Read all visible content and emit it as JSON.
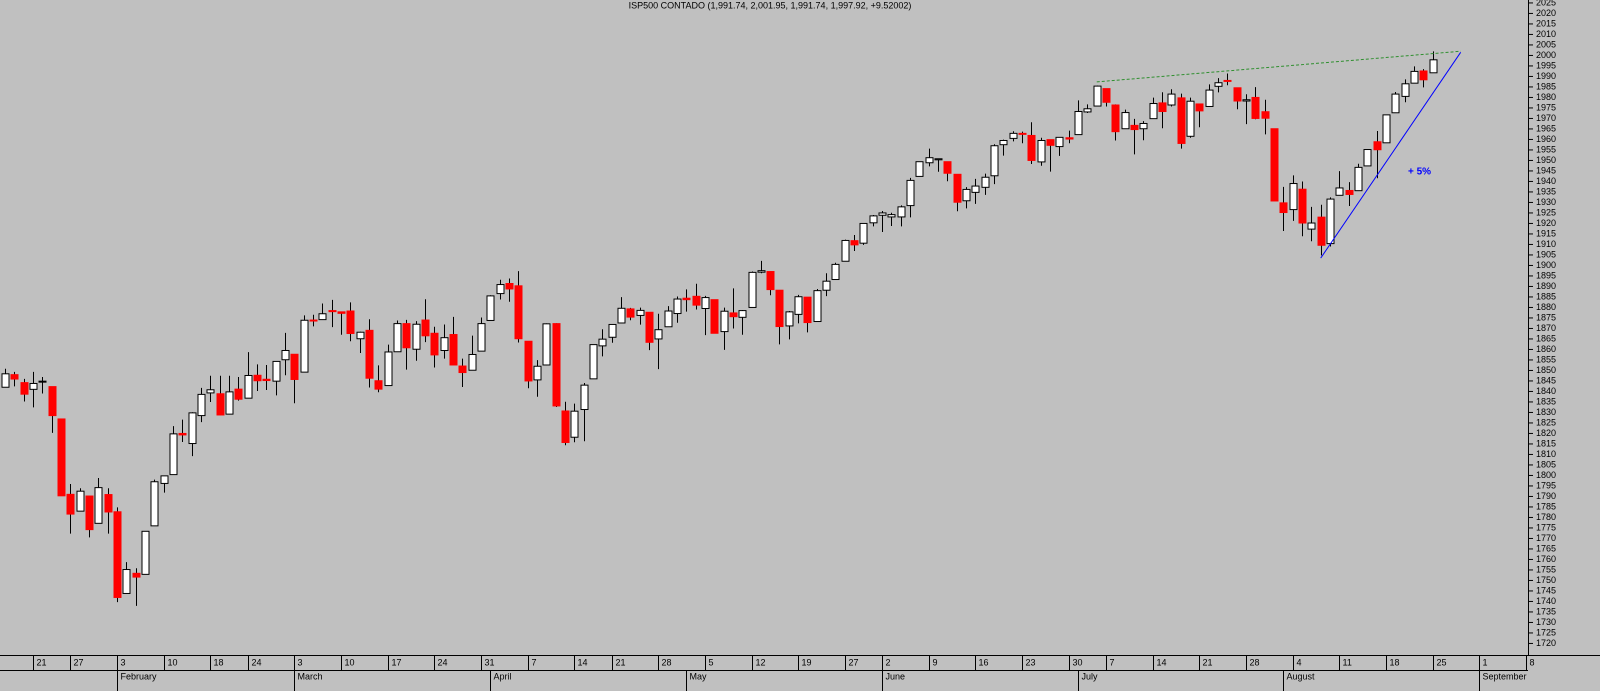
{
  "chart_data": {
    "type": "candlestick",
    "title": "ISP500 CONTADO (1,991.74, 2,001.95, 1,991.74, 1,997.92, +9.52002)",
    "up_color": "#ffffff",
    "down_color": "#ff0000",
    "wick_color": "#000000",
    "ylim": [
      1714.5,
      2026.4
    ],
    "yticks": [
      1720,
      1725,
      1730,
      1735,
      1740,
      1745,
      1750,
      1755,
      1760,
      1765,
      1770,
      1775,
      1780,
      1785,
      1790,
      1795,
      1800,
      1805,
      1810,
      1815,
      1820,
      1825,
      1830,
      1835,
      1840,
      1845,
      1850,
      1855,
      1860,
      1865,
      1870,
      1875,
      1880,
      1885,
      1890,
      1895,
      1900,
      1905,
      1910,
      1915,
      1920,
      1925,
      1930,
      1935,
      1940,
      1945,
      1950,
      1955,
      1960,
      1965,
      1970,
      1975,
      1980,
      1985,
      1990,
      1995,
      2000,
      2005,
      2010,
      2015,
      2020,
      2025
    ],
    "categories": [
      null,
      null,
      null,
      "21",
      null,
      null,
      null,
      "27",
      null,
      null,
      null,
      null,
      "3",
      null,
      null,
      null,
      null,
      "10",
      null,
      null,
      null,
      null,
      "18",
      null,
      null,
      null,
      "24",
      null,
      null,
      null,
      null,
      "3",
      null,
      null,
      null,
      null,
      "10",
      null,
      null,
      null,
      null,
      "17",
      null,
      null,
      null,
      null,
      "24",
      null,
      null,
      null,
      null,
      "31",
      null,
      null,
      null,
      null,
      "7",
      null,
      null,
      null,
      null,
      "14",
      null,
      null,
      null,
      "21",
      null,
      null,
      null,
      null,
      "28",
      null,
      null,
      null,
      null,
      "5",
      null,
      null,
      null,
      null,
      "12",
      null,
      null,
      null,
      null,
      "19",
      null,
      null,
      null,
      null,
      "27",
      null,
      null,
      null,
      "2",
      null,
      null,
      null,
      null,
      "9",
      null,
      null,
      null,
      null,
      "16",
      null,
      null,
      null,
      null,
      "23",
      null,
      null,
      null,
      null,
      "30",
      null,
      null,
      null,
      "7",
      null,
      null,
      null,
      null,
      "14",
      null,
      null,
      null,
      null,
      "21",
      null,
      null,
      null,
      null,
      "28",
      null,
      null,
      null,
      null,
      "4",
      null,
      null,
      null,
      null,
      "11",
      null,
      null,
      null,
      null,
      "18",
      null,
      null,
      null,
      null,
      "25",
      null,
      null,
      null,
      null,
      "1",
      null,
      null,
      null,
      null,
      "8"
    ],
    "months": [
      null,
      null,
      null,
      null,
      null,
      null,
      null,
      null,
      null,
      null,
      null,
      null,
      "February",
      null,
      null,
      null,
      null,
      null,
      null,
      null,
      null,
      null,
      null,
      null,
      null,
      null,
      null,
      null,
      null,
      null,
      null,
      "March",
      null,
      null,
      null,
      null,
      null,
      null,
      null,
      null,
      null,
      null,
      null,
      null,
      null,
      null,
      null,
      null,
      null,
      null,
      null,
      null,
      "April",
      null,
      null,
      null,
      null,
      null,
      null,
      null,
      null,
      null,
      null,
      null,
      null,
      null,
      null,
      null,
      null,
      null,
      null,
      null,
      null,
      "May",
      null,
      null,
      null,
      null,
      null,
      null,
      null,
      null,
      null,
      null,
      null,
      null,
      null,
      null,
      null,
      null,
      null,
      null,
      null,
      null,
      "June",
      null,
      null,
      null,
      null,
      null,
      null,
      null,
      null,
      null,
      null,
      null,
      null,
      null,
      null,
      null,
      null,
      null,
      null,
      null,
      null,
      "July",
      null,
      null,
      null,
      null,
      null,
      null,
      null,
      null,
      null,
      null,
      null,
      null,
      null,
      null,
      null,
      null,
      null,
      null,
      null,
      null,
      null,
      "August",
      null,
      null,
      null,
      null,
      null,
      null,
      null,
      null,
      null,
      null,
      null,
      null,
      null,
      null,
      null,
      null,
      null,
      null,
      null,
      null,
      "September",
      null,
      null,
      null,
      null,
      null
    ],
    "ohlc": [
      [
        1842,
        1850.8,
        1842,
        1848.4
      ],
      [
        1848,
        1849.3,
        1842.4,
        1845.9
      ],
      [
        1844.2,
        1846,
        1835.2,
        1838.7
      ],
      [
        1841,
        1849.3,
        1832.4,
        1843.8
      ],
      [
        1844.7,
        1846.9,
        1839,
        1844.9
      ],
      [
        1842.3,
        1842.3,
        1820.3,
        1828.5
      ],
      [
        1826.9,
        1826.9,
        1790.3,
        1790.3
      ],
      [
        1791,
        1795.9,
        1772.3,
        1781.6
      ],
      [
        1783,
        1793.9,
        1783,
        1792.5
      ],
      [
        1790.2,
        1790.2,
        1770.5,
        1774.2
      ],
      [
        1777.2,
        1798.8,
        1777.2,
        1794.2
      ],
      [
        1790.9,
        1793.9,
        1772.3,
        1782.6
      ],
      [
        1782.7,
        1784.8,
        1739.7,
        1741.9
      ],
      [
        1743.8,
        1758.7,
        1743.8,
        1755.2
      ],
      [
        1753.4,
        1755.8,
        1737.9,
        1751.6
      ],
      [
        1752.9,
        1773.4,
        1752.9,
        1773.4
      ],
      [
        1776,
        1798,
        1776,
        1797
      ],
      [
        1796.2,
        1799.9,
        1791.8,
        1799.8
      ],
      [
        1800.4,
        1823.5,
        1800.4,
        1819.8
      ],
      [
        1820,
        1826.6,
        1815.9,
        1819.3
      ],
      [
        1815.2,
        1830.1,
        1809.2,
        1829.8
      ],
      [
        1828.5,
        1841.7,
        1825.4,
        1838.6
      ],
      [
        1839.3,
        1847.5,
        1835,
        1840.8
      ],
      [
        1838.9,
        1847.5,
        1828.7,
        1828.8
      ],
      [
        1829.2,
        1847.5,
        1829.2,
        1839.8
      ],
      [
        1841.1,
        1846.9,
        1835.6,
        1836.3
      ],
      [
        1836.8,
        1858.7,
        1836.8,
        1847.6
      ],
      [
        1847.7,
        1852.9,
        1840.2,
        1845.1
      ],
      [
        1845.8,
        1852.6,
        1840.7,
        1845.2
      ],
      [
        1844.9,
        1854.5,
        1838.1,
        1854.3
      ],
      [
        1855.1,
        1867.9,
        1847.7,
        1859.5
      ],
      [
        1857.7,
        1857.7,
        1834.4,
        1845.7
      ],
      [
        1849.2,
        1876.2,
        1849.2,
        1873.9
      ],
      [
        1874,
        1876.5,
        1871,
        1873.8
      ],
      [
        1874.2,
        1881.9,
        1874.2,
        1877
      ],
      [
        1878.5,
        1883.6,
        1870.6,
        1878
      ],
      [
        1877.9,
        1877.9,
        1867,
        1877.2
      ],
      [
        1878.3,
        1882.4,
        1863.9,
        1867.6
      ],
      [
        1865.1,
        1868.4,
        1858.3,
        1868.2
      ],
      [
        1869.1,
        1874.4,
        1841.9,
        1846.3
      ],
      [
        1845.1,
        1852.4,
        1839.6,
        1841.1
      ],
      [
        1842.8,
        1862.3,
        1842.8,
        1858.8
      ],
      [
        1858.9,
        1873.8,
        1858.9,
        1872.3
      ],
      [
        1872.3,
        1874.1,
        1850.4,
        1860.8
      ],
      [
        1860.1,
        1873.5,
        1854.6,
        1872
      ],
      [
        1874,
        1883.9,
        1863.5,
        1866.5
      ],
      [
        1867.7,
        1870.8,
        1851.4,
        1857.4
      ],
      [
        1859.5,
        1871.9,
        1855.6,
        1865.6
      ],
      [
        1867.1,
        1875.5,
        1852.6,
        1852.6
      ],
      [
        1852.1,
        1855.6,
        1842.1,
        1849
      ],
      [
        1850.1,
        1866.6,
        1850.1,
        1857.6
      ],
      [
        1859.2,
        1875.2,
        1859.2,
        1872.3
      ],
      [
        1873.8,
        1885.8,
        1873.8,
        1885.5
      ],
      [
        1886.6,
        1893.2,
        1883.8,
        1890.9
      ],
      [
        1891.4,
        1893.8,
        1882.7,
        1888.8
      ],
      [
        1890.3,
        1897.3,
        1863.3,
        1865.1
      ],
      [
        1863.9,
        1864,
        1841.5,
        1845
      ],
      [
        1845.5,
        1854.9,
        1837.5,
        1852
      ],
      [
        1852.6,
        1872.4,
        1852.4,
        1872.2
      ],
      [
        1872.3,
        1872.5,
        1832.6,
        1833.1
      ],
      [
        1830.7,
        1835.1,
        1814.4,
        1815.7
      ],
      [
        1818.2,
        1834.2,
        1815.8,
        1830.6
      ],
      [
        1831.4,
        1844,
        1816.3,
        1843
      ],
      [
        1846,
        1862.3,
        1846,
        1862.3
      ],
      [
        1861.7,
        1869.6,
        1856.7,
        1864.9
      ],
      [
        1865.8,
        1871.9,
        1863.2,
        1871.9
      ],
      [
        1872.6,
        1884.9,
        1872.6,
        1879.6
      ],
      [
        1879.3,
        1879.8,
        1873.9,
        1875.4
      ],
      [
        1876.2,
        1879.9,
        1871.8,
        1878.6
      ],
      [
        1877.7,
        1877.7,
        1859.7,
        1863.4
      ],
      [
        1865,
        1877,
        1850.6,
        1869.4
      ],
      [
        1870.8,
        1880.6,
        1870.8,
        1878.3
      ],
      [
        1877.1,
        1885.2,
        1872.7,
        1884
      ],
      [
        1884.4,
        1888.6,
        1878,
        1883.7
      ],
      [
        1885.3,
        1891.3,
        1879,
        1881.1
      ],
      [
        1879.5,
        1885.5,
        1866.8,
        1884.7
      ],
      [
        1883.7,
        1883.7,
        1867.7,
        1867.7
      ],
      [
        1868.5,
        1879.9,
        1859.8,
        1878.2
      ],
      [
        1877.4,
        1889.1,
        1870,
        1875.6
      ],
      [
        1875.3,
        1878.8,
        1867,
        1878.5
      ],
      [
        1880,
        1897.1,
        1880,
        1896.7
      ],
      [
        1896.8,
        1902.2,
        1896.3,
        1897.5
      ],
      [
        1897.1,
        1897.1,
        1885.8,
        1888.5
      ],
      [
        1888.2,
        1888.2,
        1862.4,
        1870.9
      ],
      [
        1871.2,
        1878.3,
        1864.8,
        1877.9
      ],
      [
        1876.7,
        1886,
        1872.4,
        1885.1
      ],
      [
        1884.9,
        1884.9,
        1868.1,
        1872.8
      ],
      [
        1873.3,
        1888.8,
        1873.3,
        1888
      ],
      [
        1888.2,
        1896.3,
        1885.4,
        1892.5
      ],
      [
        1893.3,
        1901.3,
        1893.3,
        1900.5
      ],
      [
        1902,
        1912.3,
        1902,
        1911.9
      ],
      [
        1911.8,
        1914.5,
        1906.9,
        1909.8
      ],
      [
        1910.6,
        1920,
        1909.8,
        1920
      ],
      [
        1920.3,
        1924,
        1918.6,
        1923.6
      ],
      [
        1923.9,
        1925.9,
        1915.9,
        1925
      ],
      [
        1923.1,
        1925.1,
        1918.8,
        1924.2
      ],
      [
        1923.1,
        1928.6,
        1918.6,
        1927.9
      ],
      [
        1928.5,
        1941.7,
        1922.9,
        1940.5
      ],
      [
        1942.4,
        1949.4,
        1942.4,
        1949.4
      ],
      [
        1948.9,
        1955.6,
        1947.2,
        1951.3
      ],
      [
        1950.3,
        1950.9,
        1944.6,
        1950.8
      ],
      [
        1949.4,
        1949.4,
        1940.1,
        1943.9
      ],
      [
        1943.4,
        1943.4,
        1925.8,
        1930.1
      ],
      [
        1930.8,
        1937.3,
        1927.2,
        1936.2
      ],
      [
        1934.8,
        1941.2,
        1929.3,
        1937.8
      ],
      [
        1937.2,
        1943.7,
        1933.6,
        1942
      ],
      [
        1942.7,
        1957.7,
        1938.7,
        1957
      ],
      [
        1957.5,
        1959.9,
        1952.3,
        1959.5
      ],
      [
        1960.5,
        1963.9,
        1959.1,
        1962.9
      ],
      [
        1962.9,
        1963.7,
        1958.2,
        1962.6
      ],
      [
        1961.9,
        1968.2,
        1948.3,
        1950
      ],
      [
        1949.3,
        1960.8,
        1947.5,
        1959.5
      ],
      [
        1959.9,
        1959.9,
        1944.7,
        1957.2
      ],
      [
        1956.6,
        1961,
        1952.2,
        1961
      ],
      [
        1960.8,
        1964.2,
        1958.2,
        1960.2
      ],
      [
        1962.3,
        1978.6,
        1962.3,
        1973.3
      ],
      [
        1973.1,
        1976.7,
        1972.6,
        1974.6
      ],
      [
        1975.9,
        1985.6,
        1975.9,
        1985.4
      ],
      [
        1984.2,
        1984.2,
        1975.7,
        1977.7
      ],
      [
        1976.4,
        1976.7,
        1959.5,
        1963.7
      ],
      [
        1965.1,
        1974.2,
        1965.1,
        1972.8
      ],
      [
        1966.7,
        1969.8,
        1952.9,
        1964.7
      ],
      [
        1965.1,
        1968.7,
        1959.6,
        1967.6
      ],
      [
        1969.9,
        1979.9,
        1969.9,
        1977.1
      ],
      [
        1977.4,
        1982.5,
        1965.3,
        1973.3
      ],
      [
        1976.4,
        1983.9,
        1975.7,
        1981.6
      ],
      [
        1979.8,
        1981.8,
        1955.6,
        1958.1
      ],
      [
        1961.5,
        1979.9,
        1960.8,
        1978.2
      ],
      [
        1976.9,
        1976.9,
        1965.8,
        1973.6
      ],
      [
        1975.7,
        1986.2,
        1975.7,
        1983.5
      ],
      [
        1985.3,
        1989.2,
        1982.4,
        1987
      ],
      [
        1988.1,
        1991.4,
        1985.8,
        1988
      ],
      [
        1984.6,
        1984.6,
        1974.4,
        1978.3
      ],
      [
        1978.3,
        1981.5,
        1967.3,
        1978.9
      ],
      [
        1980,
        1984.9,
        1969.6,
        1970
      ],
      [
        1973.2,
        1978.9,
        1962.4,
        1970.1
      ],
      [
        1965.1,
        1965.1,
        1930.7,
        1930.7
      ],
      [
        1929.8,
        1937.4,
        1916.4,
        1925.2
      ],
      [
        1926.6,
        1942.9,
        1921.2,
        1939
      ],
      [
        1936.3,
        1940,
        1913.9,
        1920.2
      ],
      [
        1917.3,
        1927.9,
        1911.5,
        1920.2
      ],
      [
        1923,
        1928.9,
        1904.8,
        1909.6
      ],
      [
        1910.4,
        1932.4,
        1909,
        1931.6
      ],
      [
        1933.4,
        1944.9,
        1933.4,
        1936.9
      ],
      [
        1935.7,
        1939.7,
        1928.3,
        1933.8
      ],
      [
        1935.6,
        1948.4,
        1935.6,
        1946.7
      ],
      [
        1947.4,
        1955.2,
        1947.4,
        1955.2
      ],
      [
        1958.9,
        1964,
        1941.5,
        1955.1
      ],
      [
        1958.4,
        1971.9,
        1958.4,
        1971.7
      ],
      [
        1972.7,
        1982.6,
        1972.7,
        1981.6
      ],
      [
        1980.5,
        1988.6,
        1977.7,
        1986.5
      ],
      [
        1986.8,
        1994.8,
        1986.8,
        1992.4
      ],
      [
        1992.6,
        1993.5,
        1984.8,
        1988.4
      ],
      [
        1991.74,
        2001.95,
        1991.74,
        1997.92
      ],
      null,
      null,
      null,
      null,
      null,
      null,
      null,
      null,
      null,
      null
    ],
    "trendlines": [
      {
        "start": [
          117,
          1987.4
        ],
        "end": [
          156,
          2002
        ],
        "color": "#2f8f2f",
        "dashed": true
      },
      {
        "start": [
          141,
          1903.5
        ],
        "end": [
          156,
          2001.5
        ],
        "color": "#0000ff",
        "dashed": false
      }
    ],
    "annotation": "+ 5%"
  }
}
